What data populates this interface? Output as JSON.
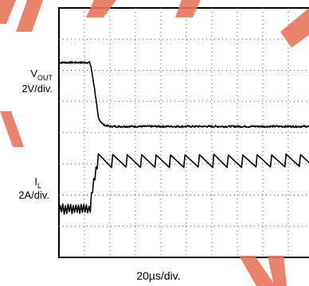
{
  "chart_data": {
    "type": "line",
    "plot_kind": "oscilloscope capture",
    "grid": true,
    "grid_divisions": {
      "x": 10,
      "y": 8
    },
    "traces": [
      {
        "label_main": "V",
        "label_sub": "OUT",
        "scale": "2V/div.",
        "color": "#000000",
        "x_div": [
          0,
          1.2,
          1.25,
          1.4,
          1.55,
          1.75,
          2.0,
          2.5,
          10
        ],
        "y_div": [
          6.25,
          6.25,
          6.15,
          5.4,
          4.45,
          4.25,
          4.2,
          4.2,
          4.2
        ],
        "noise_div": 0.03
      },
      {
        "label_main": "I",
        "label_sub": "L",
        "scale": "2A/div.",
        "color": "#000000",
        "pre_event": {
          "x_start": 0,
          "x_end": 1.23,
          "y_div": 1.55,
          "ripple_pp_div": 0.25,
          "cycles": 12
        },
        "step": {
          "x_start": 1.23,
          "x_end": 1.5,
          "y_start": 1.55,
          "y_end": 2.95
        },
        "post_event": {
          "x_start": 1.5,
          "x_end": 10,
          "y_low_div": 2.9,
          "y_high_div": 3.3,
          "cycles": 15
        }
      }
    ],
    "xlabel": "20µs/div."
  }
}
